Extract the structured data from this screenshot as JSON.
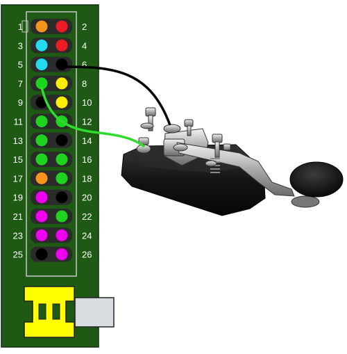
{
  "colors": {
    "board": "#1f5a14",
    "board_edge": "#0d2e08",
    "header_bg": "#2b2b2b",
    "header_outline": "#c8c8c8",
    "connector_yellow": "#ffff00",
    "port_gray": "#d7dde0",
    "wire_black": "#000000",
    "wire_green": "#2edb2e",
    "key_base": "#151515",
    "key_metal": "#b9b9b9"
  },
  "pin_colors": {
    "orange": "#f7941d",
    "red": "#ed1c24",
    "cyan": "#25d9f0",
    "black": "#000000",
    "green": "#1fd41f",
    "yellow": "#ffee00",
    "magenta": "#f000f0"
  },
  "pins": [
    {
      "left": "1",
      "left_color": "orange",
      "right": "2",
      "right_color": "red"
    },
    {
      "left": "3",
      "left_color": "cyan",
      "right": "4",
      "right_color": "red"
    },
    {
      "left": "5",
      "left_color": "cyan",
      "right": "6",
      "right_color": "black"
    },
    {
      "left": "7",
      "left_color": "green",
      "right": "8",
      "right_color": "yellow"
    },
    {
      "left": "9",
      "left_color": "black",
      "right": "10",
      "right_color": "yellow"
    },
    {
      "left": "11",
      "left_color": "green",
      "right": "12",
      "right_color": "green"
    },
    {
      "left": "13",
      "left_color": "green",
      "right": "14",
      "right_color": "black"
    },
    {
      "left": "15",
      "left_color": "green",
      "right": "16",
      "right_color": "green"
    },
    {
      "left": "17",
      "left_color": "orange",
      "right": "18",
      "right_color": "green"
    },
    {
      "left": "19",
      "left_color": "magenta",
      "right": "20",
      "right_color": "black"
    },
    {
      "left": "21",
      "left_color": "magenta",
      "right": "22",
      "right_color": "green"
    },
    {
      "left": "23",
      "left_color": "magenta",
      "right": "24",
      "right_color": "magenta"
    },
    {
      "left": "25",
      "left_color": "black",
      "right": "26",
      "right_color": "magenta"
    }
  ],
  "wires": [
    {
      "from_pin": "6",
      "to": "key-upper-terminal",
      "color": "black"
    },
    {
      "from_pin": "7",
      "to": "key-lower-terminal",
      "color": "green"
    }
  ]
}
